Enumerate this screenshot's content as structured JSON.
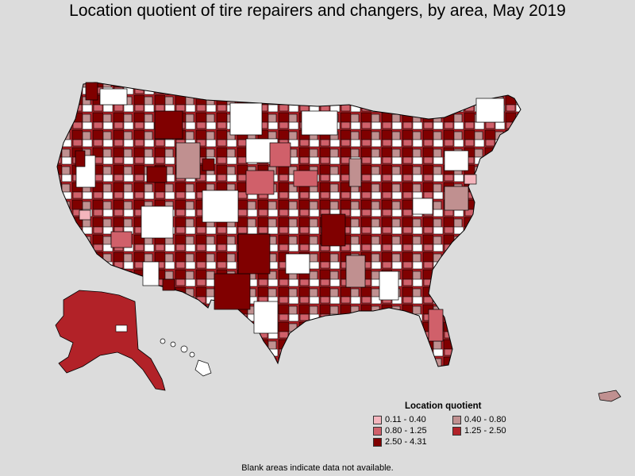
{
  "title": "Location quotient of tire repairers and changers, by area, May 2019",
  "legend": {
    "title": "Location quotient",
    "items": [
      {
        "label": "0.11 - 0.40",
        "color": "#f4b5bd"
      },
      {
        "label": "0.40 - 0.80",
        "color": "#c09090"
      },
      {
        "label": "0.80 - 1.25",
        "color": "#d0606a"
      },
      {
        "label": "1.25 - 2.50",
        "color": "#b22228"
      },
      {
        "label": "2.50 - 4.31",
        "color": "#800000"
      }
    ]
  },
  "footnote": "Blank areas indicate data not available.",
  "colors": {
    "background": "#dcdcdc",
    "no_data": "#ffffff",
    "border": "#000000"
  }
}
